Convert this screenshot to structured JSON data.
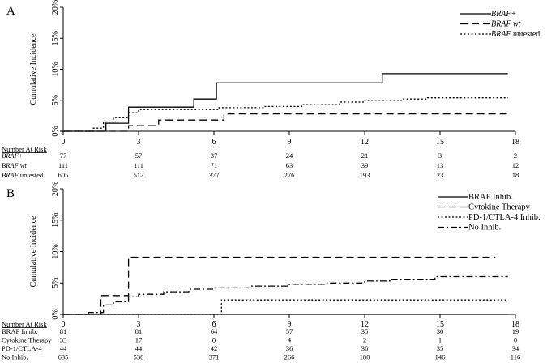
{
  "colors": {
    "line": "#000000",
    "background": "#ffffff"
  },
  "chart_data": [
    {
      "type": "line",
      "step": true,
      "panel_label": "A",
      "ylabel": "Cumulative Incidence",
      "xlabel": "",
      "xlim": [
        0,
        18
      ],
      "ylim": [
        0,
        0.2
      ],
      "x_ticks": [
        "0",
        "3",
        "6",
        "9",
        "12",
        "15",
        "18"
      ],
      "y_ticks": [
        "0%",
        "5%",
        "10%",
        "15%",
        "20%"
      ],
      "legend_position": "top-right",
      "series": [
        {
          "name": "BRAF+",
          "name_main": "BRAF",
          "name_rest": "+",
          "style": "solid",
          "points": [
            [
              0,
              0
            ],
            [
              1.7,
              0
            ],
            [
              1.7,
              0.013
            ],
            [
              2.6,
              0.013
            ],
            [
              2.6,
              0.039
            ],
            [
              5.2,
              0.039
            ],
            [
              5.2,
              0.052
            ],
            [
              6.1,
              0.052
            ],
            [
              6.1,
              0.078
            ],
            [
              12.7,
              0.078
            ],
            [
              12.7,
              0.093
            ],
            [
              17.7,
              0.093
            ]
          ]
        },
        {
          "name": "BRAF wt",
          "name_main": "BRAF",
          "name_rest": " wt",
          "style": "dashed",
          "points": [
            [
              0,
              0
            ],
            [
              2.6,
              0
            ],
            [
              2.6,
              0.009
            ],
            [
              3.8,
              0.009
            ],
            [
              3.8,
              0.018
            ],
            [
              6.4,
              0.018
            ],
            [
              6.4,
              0.028
            ],
            [
              17.7,
              0.028
            ]
          ]
        },
        {
          "name": "BRAF untested",
          "name_main": "BRAF",
          "name_rest": " untested",
          "style": "dotted",
          "points": [
            [
              0,
              0
            ],
            [
              1.2,
              0
            ],
            [
              1.2,
              0.005
            ],
            [
              1.6,
              0.005
            ],
            [
              1.6,
              0.015
            ],
            [
              2.0,
              0.015
            ],
            [
              2.0,
              0.022
            ],
            [
              2.6,
              0.022
            ],
            [
              2.6,
              0.03
            ],
            [
              3.0,
              0.03
            ],
            [
              3.0,
              0.035
            ],
            [
              6.2,
              0.035
            ],
            [
              6.2,
              0.038
            ],
            [
              8.0,
              0.038
            ],
            [
              8.0,
              0.04
            ],
            [
              9.5,
              0.04
            ],
            [
              9.5,
              0.043
            ],
            [
              11.0,
              0.043
            ],
            [
              11.0,
              0.047
            ],
            [
              12.0,
              0.047
            ],
            [
              12.0,
              0.05
            ],
            [
              13.5,
              0.05
            ],
            [
              13.5,
              0.052
            ],
            [
              14.5,
              0.052
            ],
            [
              14.5,
              0.054
            ],
            [
              17.7,
              0.054
            ]
          ]
        }
      ],
      "risk_table": {
        "title": "Number At Risk",
        "rows": [
          {
            "label": "BRAF+",
            "label_main": "BRAF",
            "label_rest": "+",
            "values": [
              "77",
              "57",
              "37",
              "24",
              "21",
              "3",
              "2"
            ]
          },
          {
            "label": "BRAF wt",
            "label_main": "BRAF",
            "label_rest": " wt",
            "values": [
              "111",
              "111",
              "71",
              "63",
              "39",
              "13",
              "12"
            ]
          },
          {
            "label": "BRAF untested",
            "label_main": "BRAF",
            "label_rest": " untested",
            "values": [
              "605",
              "512",
              "377",
              "276",
              "193",
              "23",
              "18"
            ]
          }
        ]
      }
    },
    {
      "type": "line",
      "step": true,
      "panel_label": "B",
      "ylabel": "Cumulative Incidence",
      "xlabel": "",
      "xlim": [
        0,
        18
      ],
      "ylim": [
        0,
        0.2
      ],
      "x_ticks": [
        "0",
        "3",
        "6",
        "9",
        "12",
        "15",
        "18"
      ],
      "y_ticks": [
        "0%",
        "5%",
        "10%",
        "15%",
        "20%"
      ],
      "legend_position": "top-right",
      "series": [
        {
          "name": "BRAF Inhib.",
          "style": "solid",
          "points": [
            [
              0,
              0
            ],
            [
              17.7,
              0
            ]
          ]
        },
        {
          "name": "Cytokine Therapy",
          "style": "dashed",
          "points": [
            [
              0,
              0
            ],
            [
              1.5,
              0
            ],
            [
              1.5,
              0.03
            ],
            [
              2.6,
              0.03
            ],
            [
              2.6,
              0.091
            ],
            [
              17.2,
              0.091
            ]
          ]
        },
        {
          "name": "PD-1/CTLA-4 Inhib.",
          "style": "dotted",
          "points": [
            [
              0,
              0
            ],
            [
              6.3,
              0
            ],
            [
              6.3,
              0.023
            ],
            [
              17.7,
              0.023
            ]
          ]
        },
        {
          "name": "No Inhib.",
          "style": "dashdot",
          "points": [
            [
              0,
              0
            ],
            [
              1.0,
              0
            ],
            [
              1.0,
              0.003
            ],
            [
              1.6,
              0.003
            ],
            [
              1.6,
              0.015
            ],
            [
              2.0,
              0.015
            ],
            [
              2.0,
              0.02
            ],
            [
              2.6,
              0.02
            ],
            [
              2.6,
              0.028
            ],
            [
              3.0,
              0.028
            ],
            [
              3.0,
              0.032
            ],
            [
              4.0,
              0.032
            ],
            [
              4.0,
              0.036
            ],
            [
              5.0,
              0.036
            ],
            [
              5.0,
              0.04
            ],
            [
              6.0,
              0.04
            ],
            [
              6.0,
              0.042
            ],
            [
              7.5,
              0.042
            ],
            [
              7.5,
              0.045
            ],
            [
              9.0,
              0.045
            ],
            [
              9.0,
              0.048
            ],
            [
              10.5,
              0.048
            ],
            [
              10.5,
              0.05
            ],
            [
              12.0,
              0.05
            ],
            [
              12.0,
              0.053
            ],
            [
              13.0,
              0.053
            ],
            [
              13.0,
              0.056
            ],
            [
              14.8,
              0.056
            ],
            [
              14.8,
              0.06
            ],
            [
              17.7,
              0.06
            ]
          ]
        }
      ],
      "risk_table": {
        "title": "Number At Risk",
        "rows": [
          {
            "label": "BRAF Inhib.",
            "values": [
              "81",
              "81",
              "64",
              "57",
              "35",
              "30",
              "19"
            ]
          },
          {
            "label": "Cytokine Therapy",
            "values": [
              "33",
              "17",
              "8",
              "4",
              "2",
              "1",
              "0"
            ]
          },
          {
            "label": "PD-1/CTLA-4",
            "values": [
              "44",
              "44",
              "42",
              "36",
              "36",
              "35",
              "34"
            ]
          },
          {
            "label": "No Inhib.",
            "values": [
              "635",
              "538",
              "371",
              "266",
              "180",
              "146",
              "116"
            ]
          }
        ]
      }
    }
  ]
}
